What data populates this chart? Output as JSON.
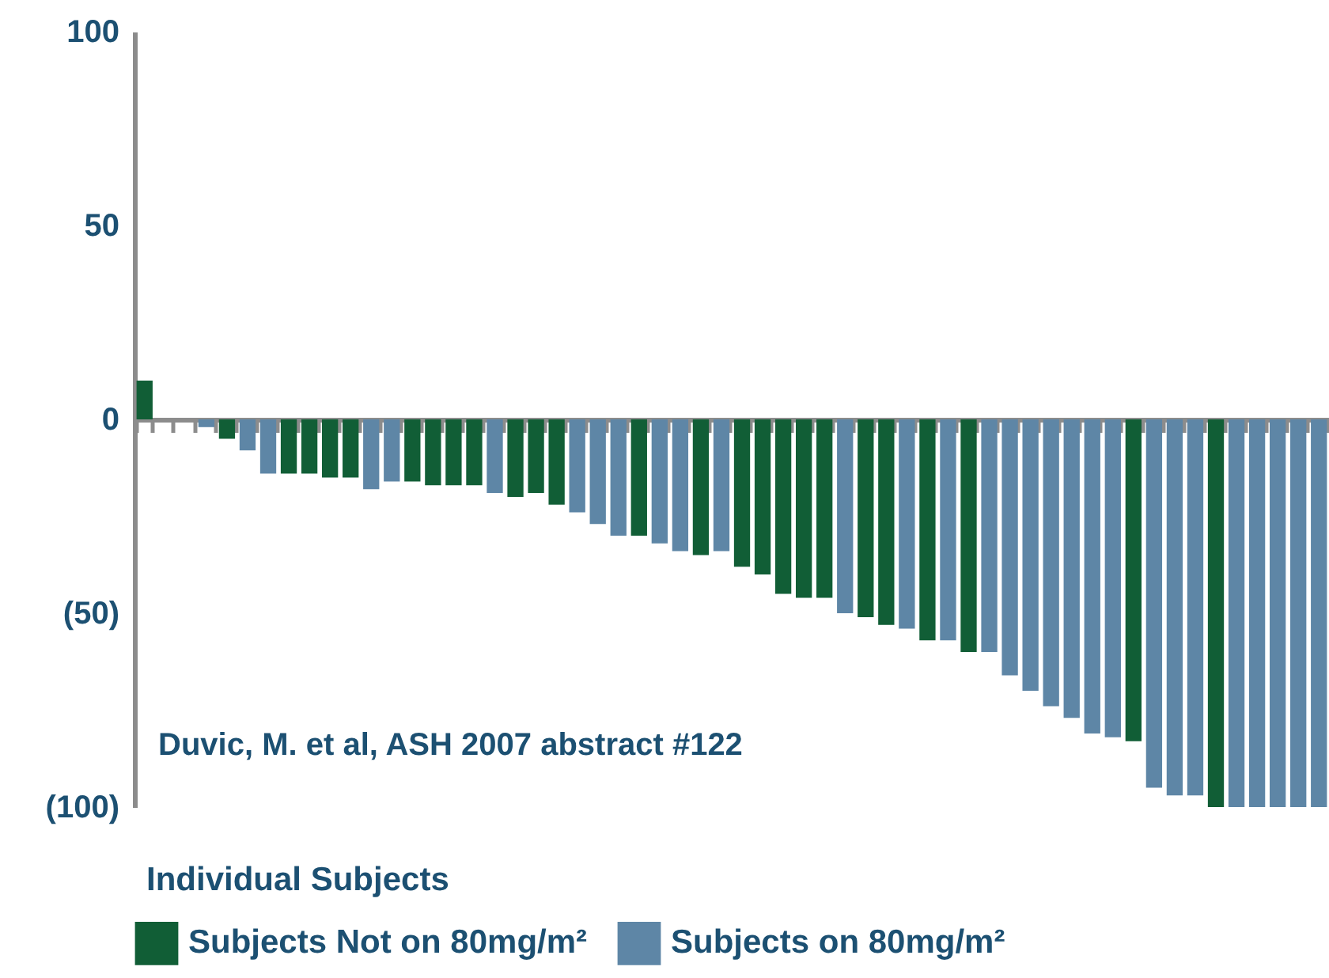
{
  "chart_data": {
    "type": "bar",
    "xlabel": "Individual Subjects",
    "annotations": [
      "Duvic, M. et al, ASH 2007 abstract #122"
    ],
    "categories": [
      null,
      null,
      null,
      null,
      null,
      null,
      null,
      null,
      null,
      null,
      null,
      null,
      null,
      null,
      null,
      null,
      null,
      null,
      null,
      null,
      null,
      null,
      null,
      null,
      null,
      null,
      null,
      null,
      null,
      null,
      null,
      null,
      null,
      null,
      null,
      null,
      null,
      null,
      null,
      null,
      null,
      null,
      null,
      null,
      null,
      null,
      null,
      null,
      null,
      null,
      null,
      null,
      null,
      null,
      null,
      null,
      null,
      null
    ],
    "series": [
      {
        "name": "Subjects Not on 80mg/m²",
        "color": "#115e36",
        "values": [
          10,
          0,
          0,
          null,
          -5,
          null,
          null,
          -14,
          -14,
          -15,
          -15,
          null,
          null,
          -16,
          -17,
          -17,
          -17,
          null,
          -20,
          -19,
          -22,
          null,
          null,
          null,
          -30,
          null,
          null,
          -35,
          null,
          -38,
          -40,
          -45,
          -46,
          -46,
          null,
          -51,
          -53,
          null,
          -57,
          null,
          -60,
          null,
          null,
          null,
          null,
          null,
          null,
          null,
          -83,
          null,
          null,
          null,
          -100,
          null,
          null,
          null,
          null,
          null
        ]
      },
      {
        "name": "Subjects on 80mg/m²",
        "color": "#5e86a6",
        "values": [
          null,
          null,
          null,
          -2,
          null,
          -8,
          -14,
          null,
          null,
          null,
          null,
          -18,
          -16,
          null,
          null,
          null,
          null,
          -19,
          null,
          null,
          null,
          -24,
          -27,
          -30,
          null,
          -32,
          -34,
          null,
          -34,
          null,
          null,
          null,
          null,
          null,
          -50,
          null,
          null,
          -54,
          null,
          -57,
          null,
          -60,
          -66,
          -70,
          -74,
          -77,
          -81,
          -82,
          null,
          -95,
          -97,
          -97,
          null,
          -100,
          -100,
          -100,
          -100,
          -100
        ]
      }
    ],
    "ylim": [
      -100,
      100
    ],
    "yticks": [
      100,
      50,
      0,
      {
        "value": -50,
        "label": "(50)"
      },
      {
        "value": -100,
        "label": "(100)"
      }
    ],
    "legend": "bottom"
  }
}
